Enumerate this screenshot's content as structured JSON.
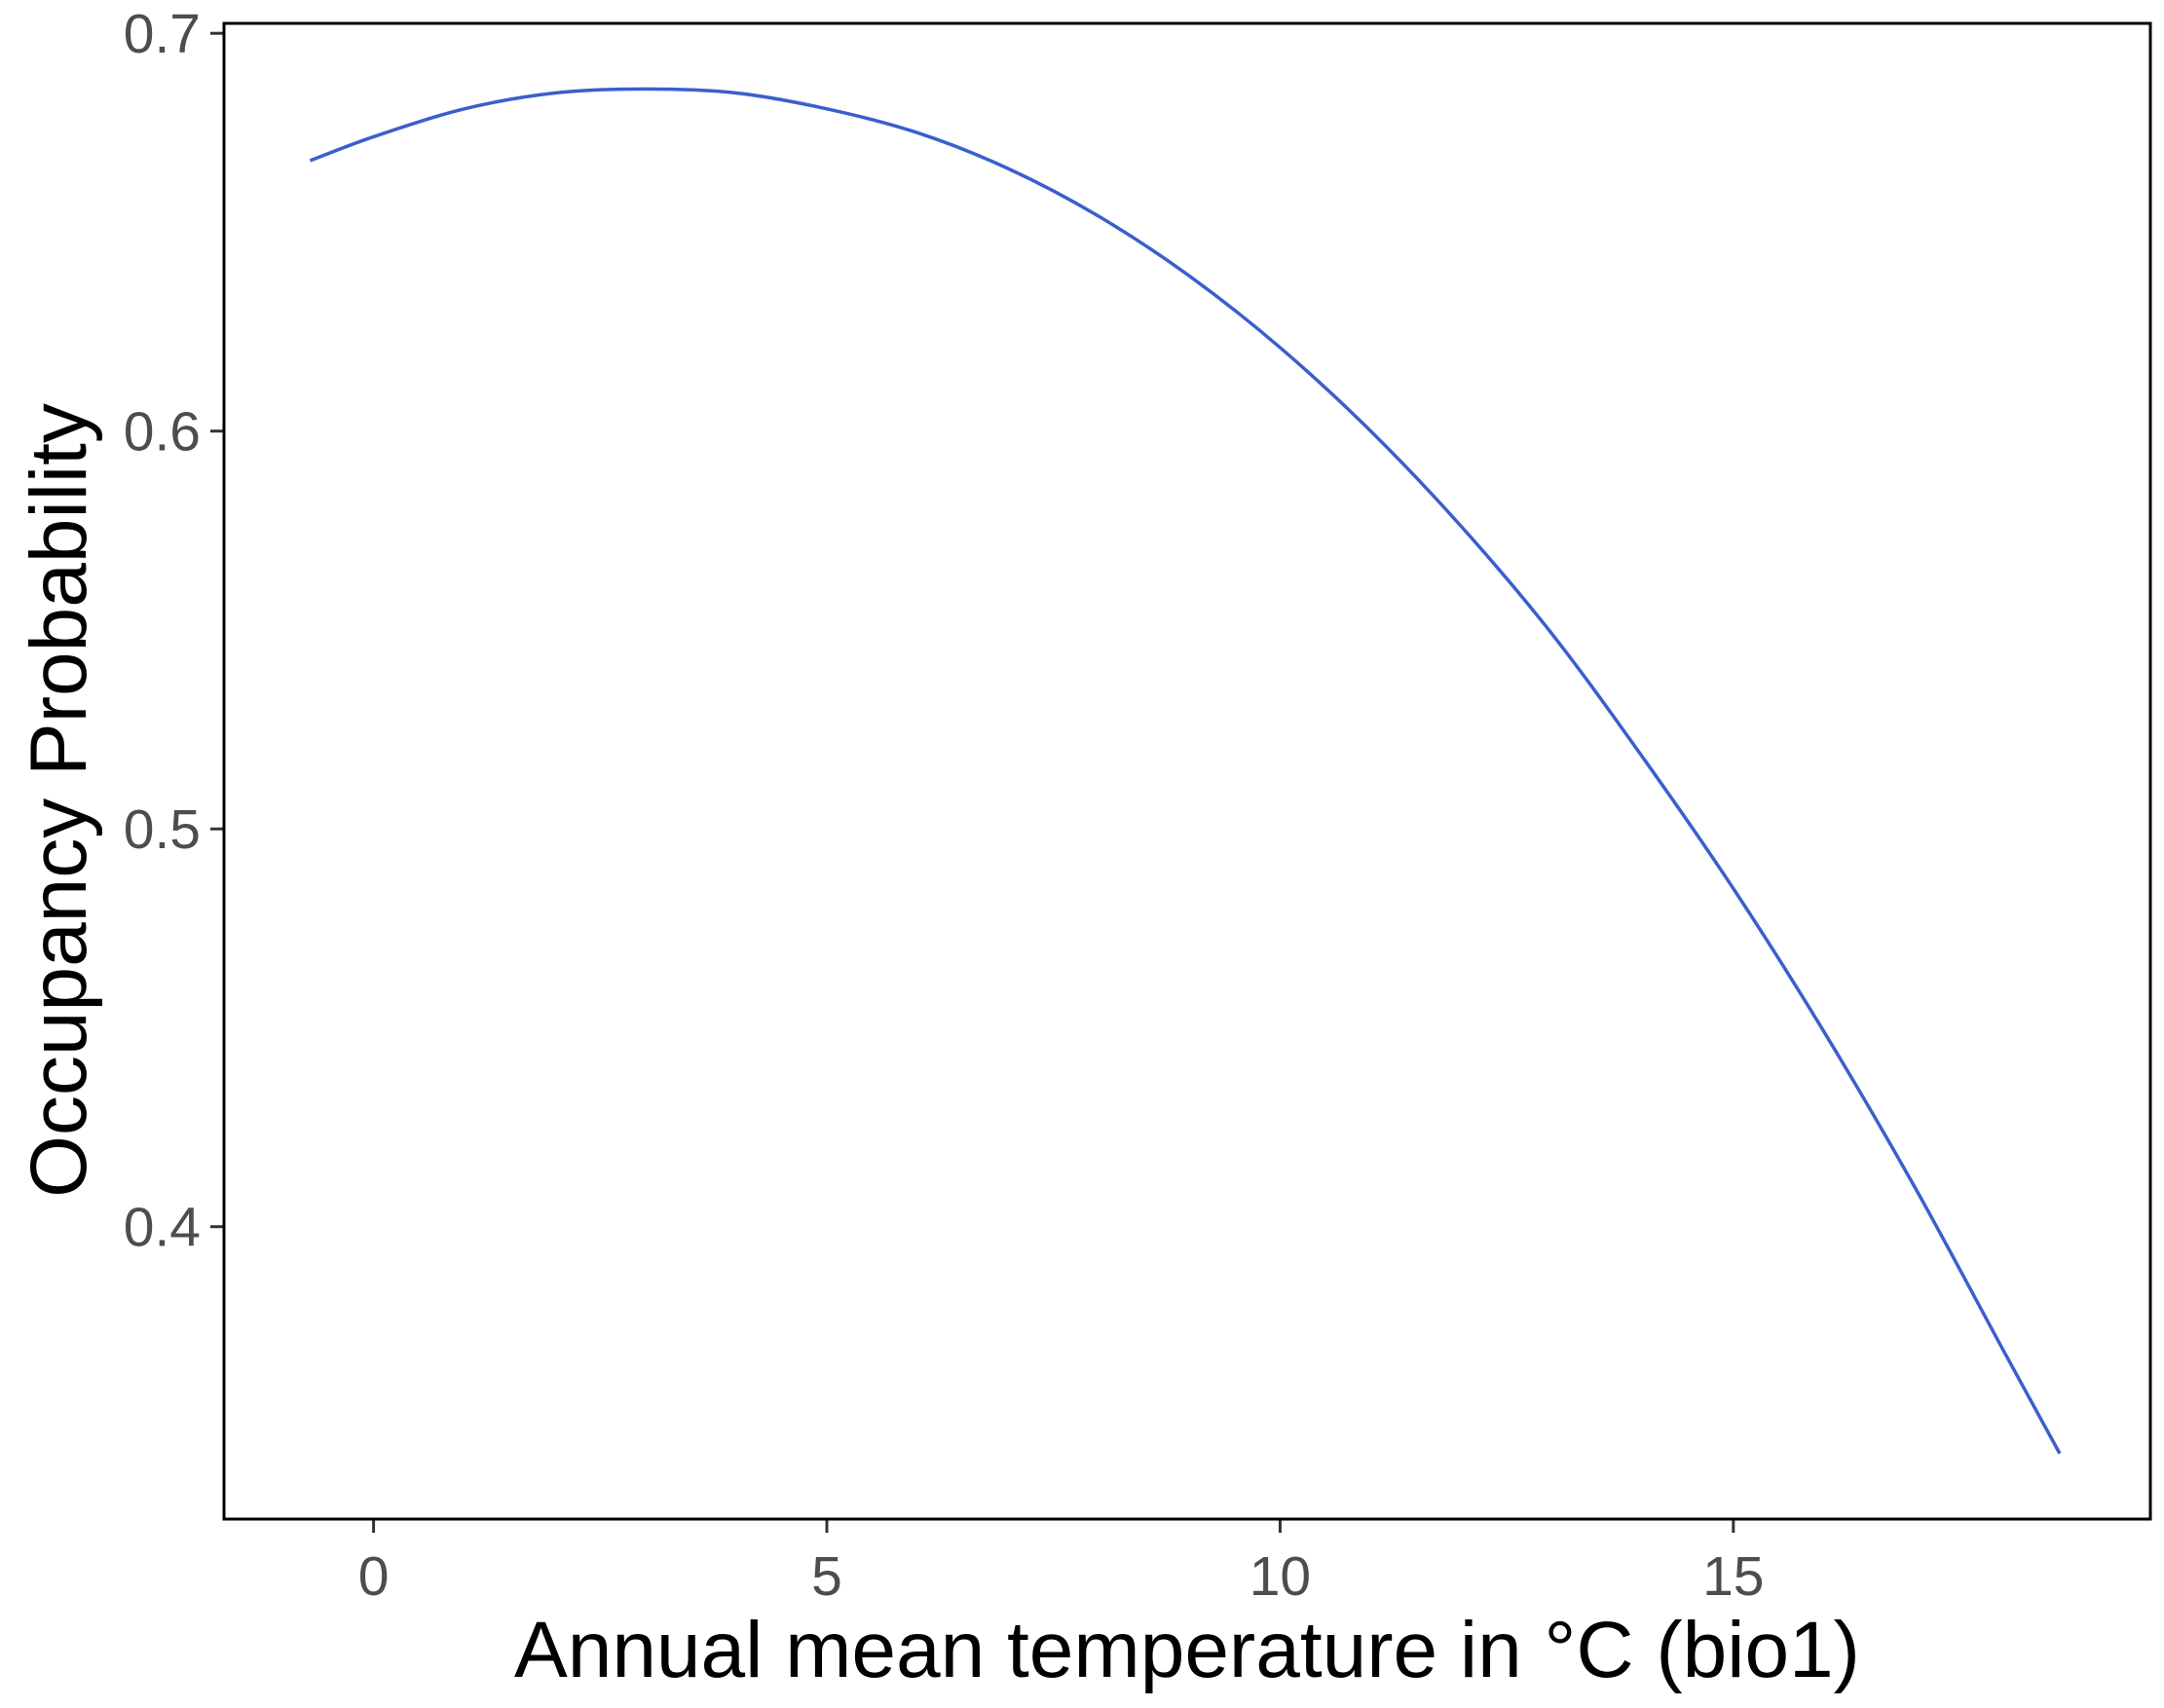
{
  "chart_data": {
    "type": "line",
    "title": "",
    "xlabel": "Annual mean temperature in °C (bio1)",
    "ylabel": "Occupancy Probability",
    "xlim": [
      -1.65,
      19.6
    ],
    "ylim": [
      0.3265,
      0.7025
    ],
    "grid": false,
    "legend": "none",
    "x_ticks": [
      {
        "value": 0,
        "label": "0"
      },
      {
        "value": 5,
        "label": "5"
      },
      {
        "value": 10,
        "label": "10"
      },
      {
        "value": 15,
        "label": "15"
      }
    ],
    "y_ticks": [
      {
        "value": 0.4,
        "label": "0.4"
      },
      {
        "value": 0.5,
        "label": "0.5"
      },
      {
        "value": 0.6,
        "label": "0.6"
      },
      {
        "value": 0.7,
        "label": "0.7"
      }
    ],
    "series": [
      {
        "color": "#3a5fcd",
        "x": [
          -0.7,
          0.0,
          1.0,
          2.0,
          3.0,
          4.0,
          5.0,
          6.0,
          7.0,
          8.0,
          9.0,
          10.0,
          11.0,
          12.0,
          13.0,
          14.0,
          15.0,
          16.0,
          17.0,
          18.0,
          18.6
        ],
        "y": [
          0.668,
          0.674,
          0.681,
          0.685,
          0.686,
          0.685,
          0.681,
          0.675,
          0.666,
          0.654,
          0.639,
          0.621,
          0.6,
          0.576,
          0.549,
          0.518,
          0.485,
          0.449,
          0.41,
          0.368,
          0.343
        ]
      }
    ]
  }
}
